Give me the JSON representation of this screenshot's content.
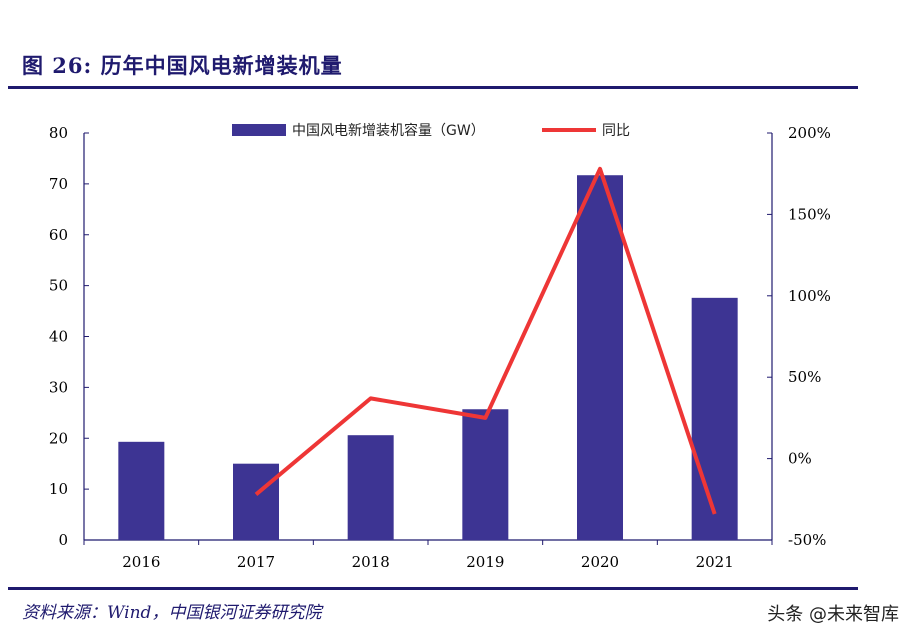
{
  "title": "图 26:  历年中国风电新增装机量",
  "source": "资料来源：Wind，中国银河证券研究院",
  "watermark": "头条 @未来智库",
  "colors": {
    "bar": "#3d3493",
    "line": "#ee3636",
    "rule": "#1f1a6e",
    "axis": "#1f1a6e"
  },
  "chart_data": {
    "type": "bar",
    "categories": [
      "2016",
      "2017",
      "2018",
      "2019",
      "2020",
      "2021"
    ],
    "series": [
      {
        "name": "中国风电新增装机容量（GW）",
        "type": "bar",
        "axis": "left",
        "values": [
          19.3,
          15.0,
          20.6,
          25.7,
          71.7,
          47.6
        ]
      },
      {
        "name": "同比",
        "type": "line",
        "axis": "right",
        "values": [
          null,
          -22,
          37,
          25,
          178,
          -34
        ]
      }
    ],
    "y_left": {
      "ylim": [
        0,
        80
      ],
      "ticks": [
        0,
        10,
        20,
        30,
        40,
        50,
        60,
        70,
        80
      ]
    },
    "y_right": {
      "ylim": [
        -50,
        200
      ],
      "ticks": [
        -50,
        0,
        50,
        100,
        150,
        200
      ],
      "tick_labels": [
        "-50%",
        "0%",
        "50%",
        "100%",
        "150%",
        "200%"
      ]
    },
    "legend_position": "top-center",
    "grid": false
  }
}
